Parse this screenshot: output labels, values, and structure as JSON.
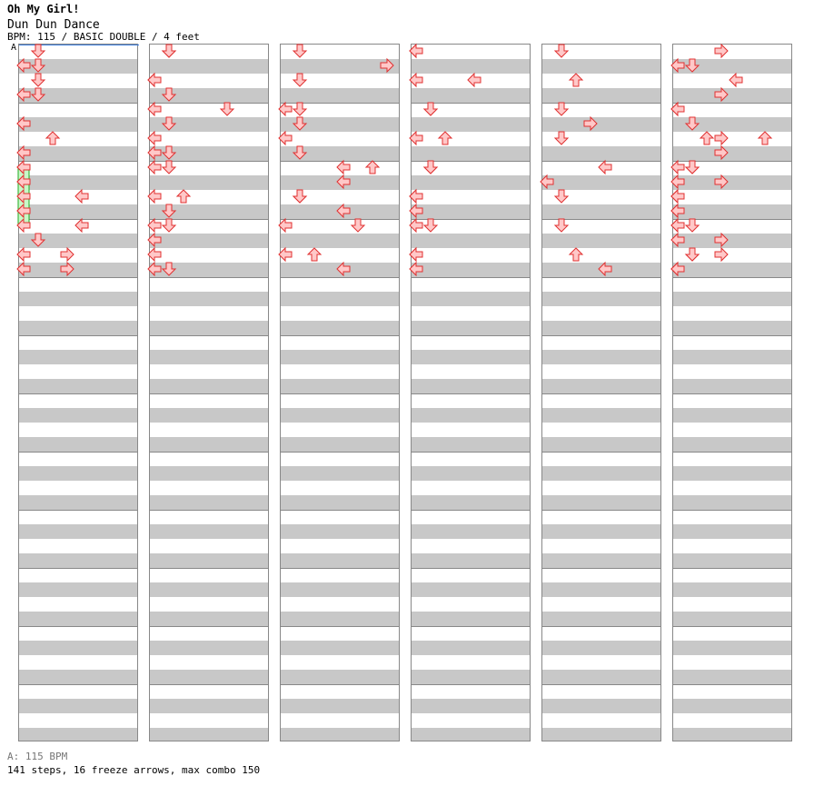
{
  "header": {
    "artist": "Oh My Girl!",
    "title": "Dun Dun Dance",
    "meta": "BPM: 115 / BASIC DOUBLE / 4 feet",
    "bpm_marker": "A"
  },
  "footer": {
    "bpm_line": "A: 115 BPM",
    "stats": "141 steps, 16 freeze arrows, max combo 150"
  },
  "colors": {
    "arrow_fill": "#ffc8c8",
    "arrow_stroke": "#e03030",
    "freeze_fill": "#c8f8c8",
    "freeze_stroke": "#22aa22",
    "band_gray": "#c8c8c8",
    "bpm_marker_line": "#3b7ddd"
  },
  "chart_data": {
    "type": "step-chart",
    "mode": "BASIC DOUBLE",
    "panels": [
      "L1",
      "D1",
      "U1",
      "R1",
      "L2",
      "D2",
      "U2",
      "R2"
    ],
    "units": "columns = 4 measures each, rows = 16th-note subdivisions",
    "notes": [
      [
        "1:1",
        1,
        "D1",
        0
      ],
      [
        "1:1",
        3,
        "L1",
        0
      ],
      [
        "1:1",
        5,
        "L1",
        0
      ],
      [
        "1:1",
        7,
        "L1",
        0
      ],
      [
        "1:1",
        8,
        "L1",
        4
      ],
      [
        "1:1",
        9,
        "L1",
        3
      ],
      [
        "1:1",
        10,
        "L2",
        0
      ],
      [
        "1:1",
        11,
        "L1",
        0
      ],
      [
        "1:1",
        12,
        "L2",
        0
      ],
      [
        "1:1",
        14,
        "R1",
        0
      ],
      [
        "1:1",
        15,
        "L1",
        0
      ],
      [
        "1:2",
        0,
        "D1",
        0
      ],
      [
        "1:2",
        2,
        "L1",
        0
      ],
      [
        "1:2",
        4,
        "L1",
        0
      ],
      [
        "1:2",
        5,
        "D1",
        0
      ],
      [
        "1:2",
        7,
        "D1",
        0
      ],
      [
        "1:2",
        8,
        "D1",
        0
      ],
      [
        "1:2",
        10,
        "L1",
        0
      ],
      [
        "1:2",
        11,
        "D1",
        0
      ],
      [
        "1:2",
        12,
        "D1",
        0
      ],
      [
        "1:2",
        13,
        "L1",
        0
      ],
      [
        "1:2",
        15,
        "D1",
        0
      ],
      [
        "1:3",
        4,
        "D1",
        0
      ],
      [
        "1:3",
        8,
        "U2",
        0
      ],
      [
        "1:3",
        9,
        "L2",
        0
      ],
      [
        "1:3",
        10,
        "D1",
        0
      ],
      [
        "1:3",
        11,
        "L2",
        0
      ],
      [
        "1:3",
        12,
        "D2",
        0
      ],
      [
        "1:3",
        14,
        "U1",
        0
      ],
      [
        "1:3",
        15,
        "L2",
        0
      ],
      [
        "1:4",
        0,
        "L1",
        0
      ],
      [
        "1:4",
        2,
        "L2",
        0
      ],
      [
        "1:4",
        4,
        "D1",
        0
      ],
      [
        "1:4",
        6,
        "U1",
        0
      ],
      [
        "1:4",
        8,
        "D1",
        0
      ],
      [
        "1:4",
        10,
        "L1",
        0
      ],
      [
        "1:4",
        11,
        "L1",
        0
      ],
      [
        "1:4",
        12,
        "D1",
        0
      ],
      [
        "1:4",
        14,
        "L1",
        0
      ],
      [
        "1:5",
        0,
        "D1",
        0
      ],
      [
        "1:5",
        2,
        "U1",
        0
      ],
      [
        "1:5",
        4,
        "D1",
        0
      ],
      [
        "1:5",
        5,
        "R1",
        0
      ],
      [
        "1:5",
        6,
        "D1",
        0
      ],
      [
        "1:5",
        8,
        "L2",
        0
      ],
      [
        "1:5",
        9,
        "L1",
        0
      ],
      [
        "1:5",
        10,
        "D1",
        0
      ],
      [
        "1:5",
        12,
        "D1",
        0
      ],
      [
        "1:5",
        14,
        "U1",
        0
      ],
      [
        "1:5",
        15,
        "L2",
        0
      ],
      [
        "1:6",
        1,
        "D1",
        0
      ],
      [
        "1:6",
        2,
        "L2",
        0
      ],
      [
        "1:6",
        4,
        "L1",
        0
      ],
      [
        "1:6",
        6,
        "U1",
        0
      ],
      [
        "1:6",
        8,
        "D1",
        0
      ],
      [
        "1:6",
        10,
        "L1",
        0
      ],
      [
        "1:6",
        11,
        "L1",
        0
      ],
      [
        "1:6",
        12,
        "L1",
        0
      ],
      [
        "1:6",
        14,
        "D1",
        0
      ],
      [
        "1:6",
        15,
        "L1",
        0
      ],
      [
        "1:7",
        0,
        "R1",
        0
      ],
      [
        "1:7",
        4,
        "L1",
        0
      ],
      [
        "1:7",
        6,
        "U2",
        0
      ],
      [
        "1:7",
        7,
        "R1",
        0
      ],
      [
        "1:7",
        8,
        "L1",
        0
      ],
      [
        "1:7",
        9,
        "R1",
        0
      ],
      [
        "1:7",
        10,
        "L1",
        0
      ],
      [
        "1:7",
        11,
        "L1",
        0
      ],
      [
        "1:7",
        12,
        "L1",
        0
      ],
      [
        "1:7",
        13,
        "L1",
        0
      ],
      [
        "1:7",
        14,
        "R1",
        0
      ],
      [
        "1:7",
        15,
        "L1",
        0
      ],
      [
        "1:8",
        1,
        "L1",
        0
      ],
      [
        "1:8",
        3,
        "R1",
        0
      ],
      [
        "1:8",
        5,
        "D1",
        0
      ],
      [
        "1:8",
        6,
        "R1",
        0
      ],
      [
        "1:8",
        8,
        "D1",
        0
      ],
      [
        "1:8",
        9,
        "L1",
        0
      ],
      [
        "1:8",
        10,
        "L1",
        0
      ],
      [
        "1:8",
        12,
        "D1",
        0
      ],
      [
        "1:8",
        13,
        "R1",
        0
      ],
      [
        "1:8",
        14,
        "D1",
        0
      ],
      [
        "1:8",
        15,
        "L1",
        0
      ],
      [
        "2:1",
        0,
        "D1",
        0
      ],
      [
        "2:1",
        1,
        "L1",
        0
      ],
      [
        "2:1",
        2,
        "D1",
        0
      ],
      [
        "2:1",
        3,
        "D1",
        0
      ],
      [
        "2:1",
        5,
        "L1",
        0
      ],
      [
        "2:1",
        6,
        "U1",
        0
      ],
      [
        "2:1",
        8,
        "L1",
        0
      ],
      [
        "2:1",
        9,
        "L1",
        0
      ],
      [
        "2:1",
        10,
        "L1",
        0
      ],
      [
        "2:1",
        11,
        "L1",
        0
      ],
      [
        "2:1",
        12,
        "L1",
        0
      ],
      [
        "2:1",
        13,
        "D1",
        0
      ],
      [
        "2:1",
        14,
        "L1",
        0
      ],
      [
        "2:1",
        15,
        "R1",
        0
      ],
      [
        "2:2",
        0,
        "D1",
        0
      ],
      [
        "2:2",
        2,
        "L1",
        0
      ],
      [
        "2:2",
        3,
        "D1",
        0
      ],
      [
        "2:2",
        4,
        "D2",
        0
      ],
      [
        "2:2",
        6,
        "L1",
        0
      ],
      [
        "2:2",
        7,
        "L1",
        0
      ],
      [
        "2:2",
        8,
        "L1",
        0
      ],
      [
        "2:2",
        10,
        "U1",
        0
      ],
      [
        "2:2",
        12,
        "L1",
        0
      ],
      [
        "2:2",
        14,
        "L1",
        0
      ],
      [
        "2:2",
        15,
        "L1",
        0
      ],
      [
        "2:3",
        0,
        "D1",
        0
      ],
      [
        "2:3",
        1,
        "R2",
        0
      ],
      [
        "2:3",
        2,
        "D1",
        0
      ],
      [
        "2:3",
        4,
        "L1",
        0
      ],
      [
        "2:3",
        5,
        "D1",
        0
      ],
      [
        "2:3",
        6,
        "L1",
        0
      ],
      [
        "2:3",
        7,
        "D1",
        0
      ],
      [
        "2:3",
        8,
        "L2",
        0
      ],
      [
        "2:3",
        10,
        "D1",
        0
      ],
      [
        "2:3",
        12,
        "L1",
        0
      ],
      [
        "2:3",
        14,
        "L1",
        0
      ],
      [
        "2:4",
        0,
        "L1",
        0
      ],
      [
        "2:4",
        2,
        "L1",
        0
      ],
      [
        "2:4",
        4,
        "D1",
        0
      ],
      [
        "2:4",
        6,
        "L1",
        0
      ],
      [
        "2:4",
        8,
        "D1",
        0
      ],
      [
        "2:4",
        10,
        "L1",
        0
      ],
      [
        "2:4",
        12,
        "L1",
        0
      ],
      [
        "2:4",
        14,
        "L1",
        0
      ],
      [
        "2:4",
        15,
        "L1",
        0
      ]
    ]
  }
}
